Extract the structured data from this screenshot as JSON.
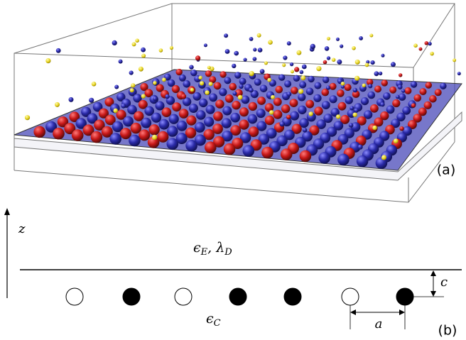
{
  "panel_a": {
    "label": "(a)"
  },
  "panel_b": {
    "label": "(b)",
    "axis_label": "z",
    "upper_medium": [
      "ϵ",
      "E",
      ", λ",
      "D"
    ],
    "lower_medium": [
      "ϵ",
      "C"
    ],
    "depth_label": "c",
    "spacing_label": "a"
  }
}
